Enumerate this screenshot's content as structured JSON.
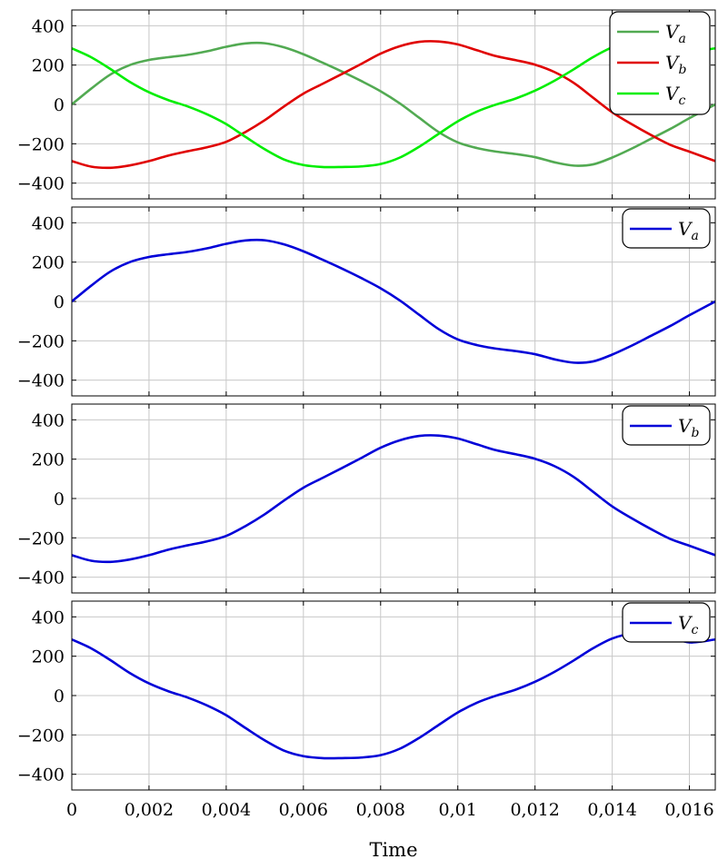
{
  "chart_data": {
    "type": "line",
    "xlabel": "Time",
    "xlim": [
      0,
      0.01667
    ],
    "ylim": [
      -480,
      480
    ],
    "x_ticks": [
      0,
      0.002,
      0.004,
      0.006,
      0.008,
      0.01,
      0.012,
      0.014,
      0.016
    ],
    "x_tick_labels": [
      "0",
      "0,002",
      "0,004",
      "0,006",
      "0,008",
      "0,01",
      "0,012",
      "0,014",
      "0,016"
    ],
    "y_ticks": [
      400,
      200,
      0,
      -200,
      -400
    ],
    "y_tick_labels": [
      "400",
      "200",
      "0",
      "−200",
      "−400"
    ],
    "grid": true,
    "legend_position": "top-right",
    "x": [
      0,
      0.0005,
      0.001,
      0.0015,
      0.002,
      0.0025,
      0.003,
      0.0035,
      0.004,
      0.0045,
      0.005,
      0.0055,
      0.006,
      0.0065,
      0.007,
      0.0075,
      0.008,
      0.0085,
      0.009,
      0.0095,
      0.01,
      0.0105,
      0.011,
      0.0115,
      0.012,
      0.0125,
      0.013,
      0.0135,
      0.014,
      0.0145,
      0.015,
      0.0155,
      0.016,
      0.01667
    ],
    "series": {
      "Va": [
        0,
        80,
        152,
        200,
        226,
        240,
        252,
        270,
        293,
        310,
        311,
        290,
        255,
        212,
        167,
        119,
        67,
        5,
        -68,
        -140,
        -193,
        -222,
        -240,
        -252,
        -268,
        -294,
        -311,
        -305,
        -270,
        -225,
        -175,
        -125,
        -70,
        0
      ],
      "Vb": [
        -288,
        -316,
        -322,
        -310,
        -288,
        -260,
        -238,
        -218,
        -190,
        -140,
        -80,
        -10,
        55,
        105,
        155,
        206,
        258,
        296,
        318,
        320,
        305,
        275,
        245,
        225,
        202,
        165,
        110,
        35,
        -40,
        -100,
        -155,
        -205,
        -240,
        -288
      ],
      "Vc": [
        285,
        240,
        180,
        115,
        62,
        22,
        -10,
        -50,
        -100,
        -165,
        -228,
        -280,
        -308,
        -318,
        -318,
        -315,
        -303,
        -270,
        -215,
        -150,
        -86,
        -36,
        0,
        30,
        70,
        120,
        178,
        240,
        290,
        315,
        318,
        300,
        270,
        285
      ]
    },
    "panels": [
      {
        "series": [
          {
            "key": "Va",
            "name_main": "V",
            "name_sub": "a",
            "color": "#52aa52"
          },
          {
            "key": "Vb",
            "name_main": "V",
            "name_sub": "b",
            "color": "#e00000"
          },
          {
            "key": "Vc",
            "name_main": "V",
            "name_sub": "c",
            "color": "#00ee00"
          }
        ]
      },
      {
        "series": [
          {
            "key": "Va",
            "name_main": "V",
            "name_sub": "a",
            "color": "#0000d8"
          }
        ]
      },
      {
        "series": [
          {
            "key": "Vb",
            "name_main": "V",
            "name_sub": "b",
            "color": "#0000d8"
          }
        ]
      },
      {
        "series": [
          {
            "key": "Vc",
            "name_main": "V",
            "name_sub": "c",
            "color": "#0000d8"
          }
        ]
      }
    ]
  }
}
